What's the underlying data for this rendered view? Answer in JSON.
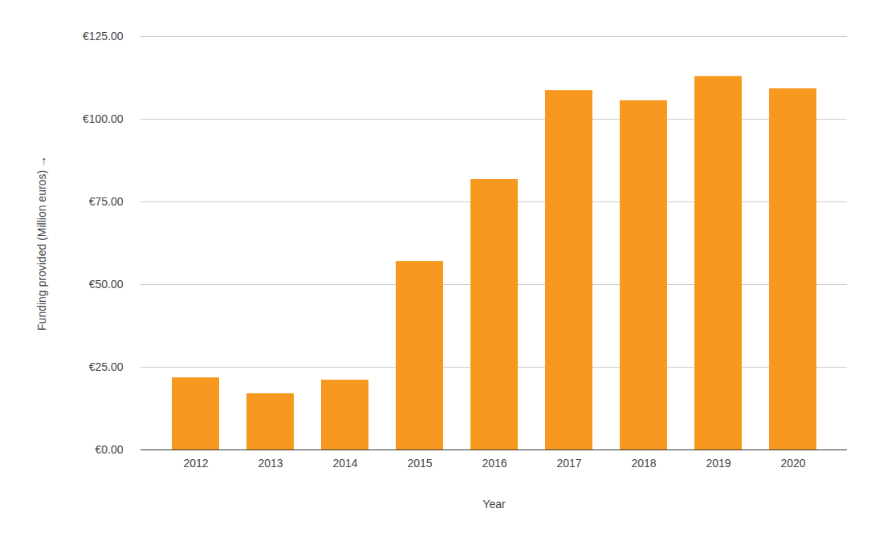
{
  "chart_data": {
    "type": "bar",
    "x_label": "Year",
    "y_label": "Funding provided (Million euros)",
    "categories": [
      "2012",
      "2013",
      "2014",
      "2015",
      "2016",
      "2017",
      "2018",
      "2019",
      "2020"
    ],
    "values": [
      21.8,
      17.0,
      21.1,
      57.0,
      81.8,
      108.7,
      105.6,
      112.9,
      109.2
    ],
    "color": "#f7991f",
    "ylim": [
      0,
      125
    ],
    "yticks": [
      {
        "value": 0,
        "label": "€0.00"
      },
      {
        "value": 25,
        "label": "€25.00"
      },
      {
        "value": 50,
        "label": "€50.00"
      },
      {
        "value": 75,
        "label": "€75.00"
      },
      {
        "value": 100,
        "label": "€100.00"
      },
      {
        "value": 125,
        "label": "€125.00"
      }
    ],
    "grid": true
  }
}
